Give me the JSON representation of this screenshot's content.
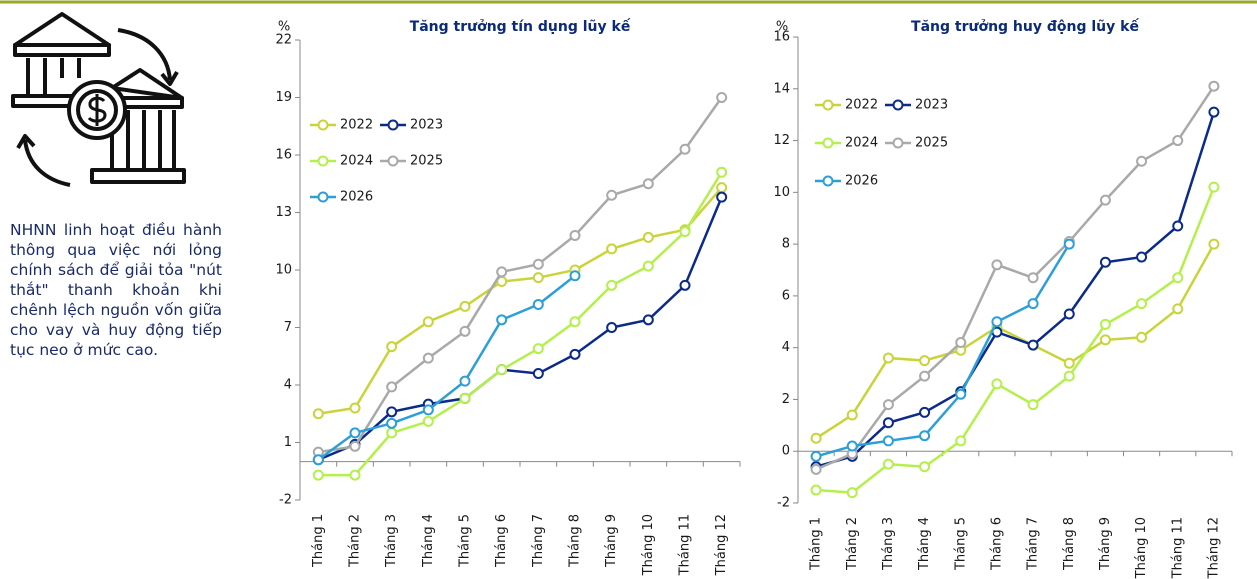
{
  "caption": "NHNN linh hoạt điều hành thông qua việc nới lỏng chính sách để giải tỏa \"nút thắt\" thanh khoản khi chênh lệch nguồn vốn giữa cho vay và huy động tiếp tục neo ở mức cao.",
  "chart_data": [
    {
      "type": "line",
      "title": "Tăng trưởng tín dụng lũy kế",
      "y_label": "%",
      "categories": [
        "Tháng 1",
        "Tháng 2",
        "Tháng 3",
        "Tháng 4",
        "Tháng 5",
        "Tháng 6",
        "Tháng 7",
        "Tháng 8",
        "Tháng 9",
        "Tháng 10",
        "Tháng 11",
        "Tháng 12"
      ],
      "ylim": [
        -2,
        22
      ],
      "yticks": [
        -2,
        1,
        4,
        7,
        10,
        13,
        16,
        19,
        22
      ],
      "series": [
        {
          "name": "2022",
          "color": "#c9d43a",
          "values": [
            2.5,
            2.8,
            6.0,
            7.3,
            8.1,
            9.4,
            9.6,
            10.0,
            11.1,
            11.7,
            12.1,
            14.3
          ]
        },
        {
          "name": "2023",
          "color": "#0b2a8a",
          "values": [
            0.1,
            0.9,
            2.6,
            3.0,
            3.3,
            4.8,
            4.6,
            5.6,
            7.0,
            7.4,
            9.2,
            13.8
          ]
        },
        {
          "name": "2024",
          "color": "#b3f04a",
          "values": [
            -0.7,
            -0.7,
            1.5,
            2.1,
            3.3,
            4.8,
            5.9,
            7.3,
            9.2,
            10.2,
            12.0,
            15.1
          ]
        },
        {
          "name": "2025",
          "color": "#a9a9a9",
          "values": [
            0.5,
            0.8,
            3.9,
            5.4,
            6.8,
            9.9,
            10.3,
            11.8,
            13.9,
            14.5,
            16.3,
            19.0
          ]
        },
        {
          "name": "2026",
          "color": "#2c9fd8",
          "values": [
            0.1,
            1.5,
            2.0,
            2.7,
            4.2,
            7.4,
            8.2,
            9.7,
            null,
            null,
            null,
            null
          ]
        }
      ]
    },
    {
      "type": "line",
      "title": "Tăng trưởng huy động lũy kế",
      "y_label": "%",
      "categories": [
        "Tháng 1",
        "Tháng 2",
        "Tháng 3",
        "Tháng 4",
        "Tháng 5",
        "Tháng 6",
        "Tháng 7",
        "Tháng 8",
        "Tháng 9",
        "Tháng 10",
        "Tháng 11",
        "Tháng 12"
      ],
      "ylim": [
        -2,
        16
      ],
      "yticks": [
        -2,
        0,
        2,
        4,
        6,
        8,
        10,
        12,
        14,
        16
      ],
      "series": [
        {
          "name": "2022",
          "color": "#c9d43a",
          "values": [
            0.5,
            1.4,
            3.6,
            3.5,
            3.9,
            4.8,
            4.1,
            3.4,
            4.3,
            4.4,
            5.5,
            8.0
          ]
        },
        {
          "name": "2023",
          "color": "#0b2a8a",
          "values": [
            -0.6,
            -0.2,
            1.1,
            1.5,
            2.3,
            4.6,
            4.1,
            5.3,
            7.3,
            7.5,
            8.7,
            13.1
          ]
        },
        {
          "name": "2024",
          "color": "#b3f04a",
          "values": [
            -1.5,
            -1.6,
            -0.5,
            -0.6,
            0.4,
            2.6,
            1.8,
            2.9,
            4.9,
            5.7,
            6.7,
            10.2
          ]
        },
        {
          "name": "2025",
          "color": "#a9a9a9",
          "values": [
            -0.7,
            -0.1,
            1.8,
            2.9,
            4.2,
            7.2,
            6.7,
            8.1,
            9.7,
            11.2,
            12.0,
            14.1
          ]
        },
        {
          "name": "2026",
          "color": "#2c9fd8",
          "values": [
            -0.2,
            0.2,
            0.4,
            0.6,
            2.2,
            5.0,
            5.7,
            8.0,
            null,
            null,
            null,
            null
          ]
        }
      ]
    }
  ]
}
